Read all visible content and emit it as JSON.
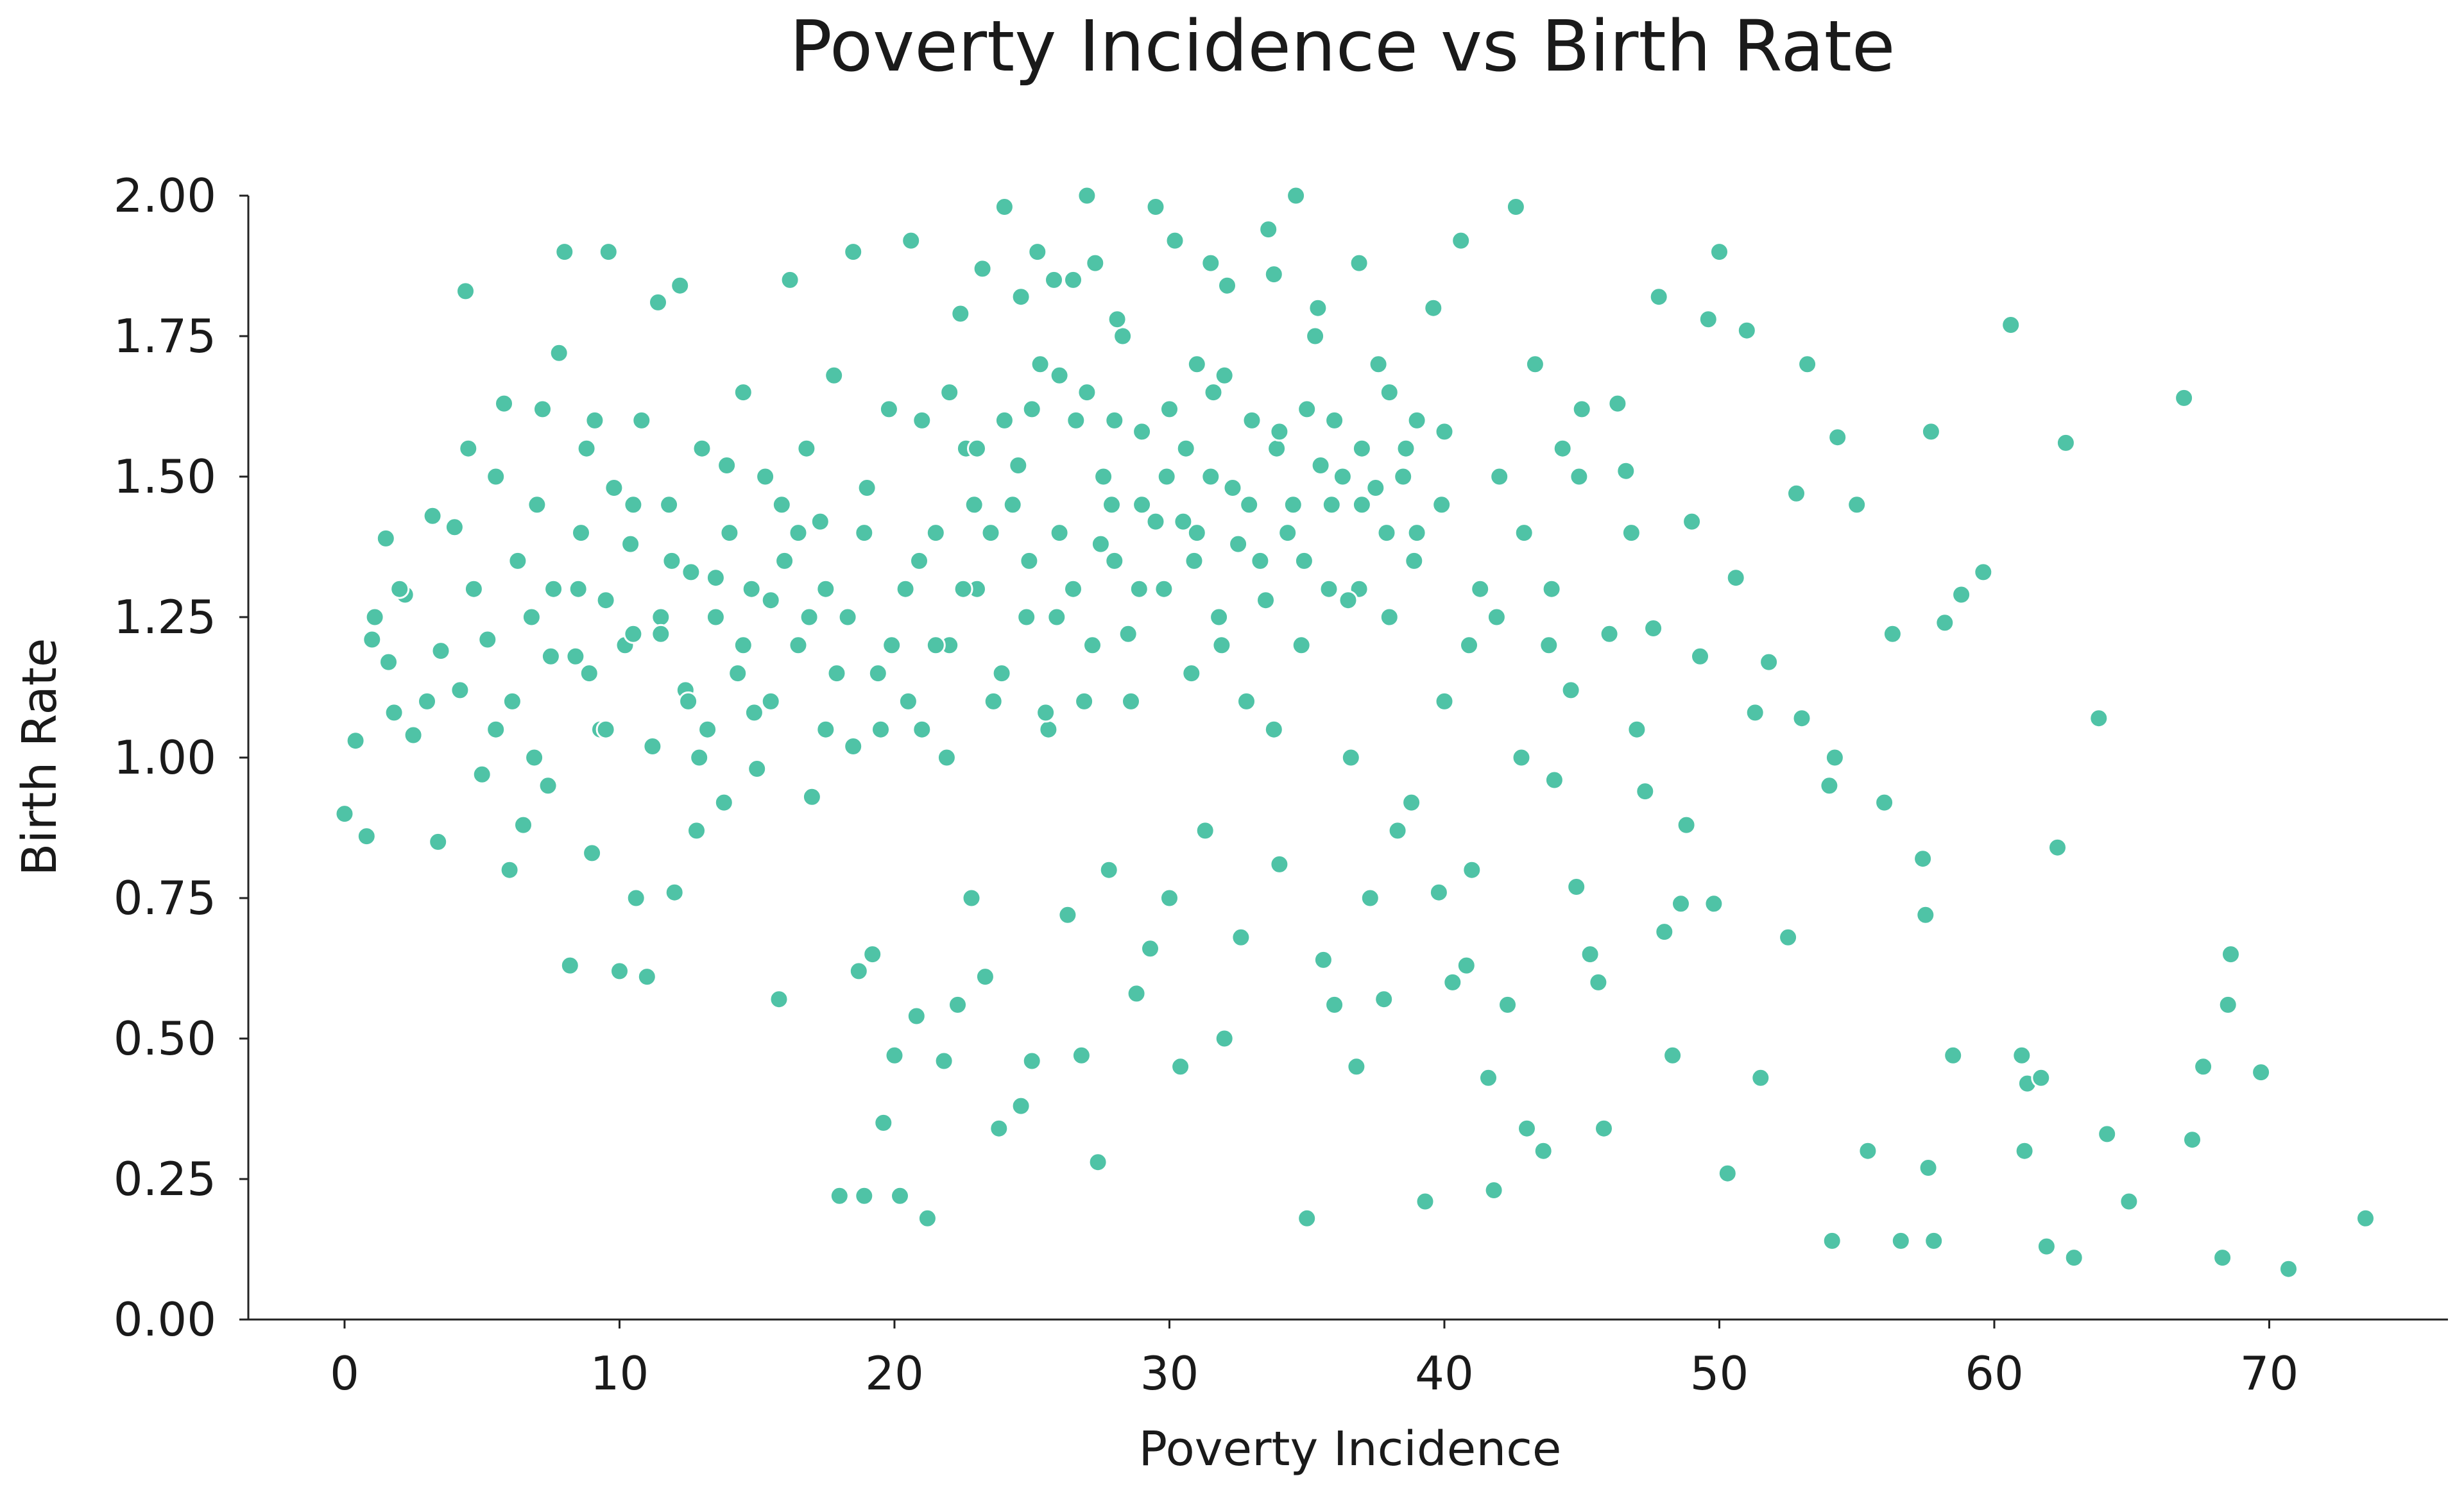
{
  "chart_data": {
    "type": "scatter",
    "title": "Poverty Incidence vs Birth Rate",
    "xlabel": "Poverty Incidence",
    "ylabel": "Birth Rate",
    "xlim": [
      -3.5,
      76.5
    ],
    "ylim": [
      0,
      2
    ],
    "xticks": [
      0,
      10,
      20,
      30,
      40,
      50,
      60,
      70
    ],
    "xtick_labels": [
      "0",
      "10",
      "20",
      "30",
      "40",
      "50",
      "60",
      "70"
    ],
    "yticks": [
      0,
      0.25,
      0.5,
      0.75,
      1.0,
      1.25,
      1.5,
      1.75,
      2.0
    ],
    "ytick_labels": [
      "0.00",
      "0.25",
      "0.50",
      "0.75",
      "1.00",
      "1.25",
      "1.50",
      "1.75",
      "2.00"
    ],
    "grid": false,
    "legend": "none",
    "color": "#4fc3a6",
    "points": [
      [
        0.0,
        0.9
      ],
      [
        0.4,
        1.03
      ],
      [
        0.8,
        0.86
      ],
      [
        1.0,
        1.21
      ],
      [
        1.1,
        1.25
      ],
      [
        1.5,
        1.39
      ],
      [
        1.6,
        1.17
      ],
      [
        1.8,
        1.08
      ],
      [
        2.2,
        1.29
      ],
      [
        2.5,
        1.04
      ],
      [
        3.2,
        1.43
      ],
      [
        3.4,
        0.85
      ],
      [
        3.5,
        1.19
      ],
      [
        4.0,
        1.41
      ],
      [
        4.2,
        1.12
      ],
      [
        4.4,
        1.83
      ],
      [
        4.7,
        1.3
      ],
      [
        5.0,
        0.97
      ],
      [
        5.2,
        1.21
      ],
      [
        5.5,
        1.5
      ],
      [
        5.8,
        1.63
      ],
      [
        6.0,
        0.8
      ],
      [
        6.1,
        1.1
      ],
      [
        6.3,
        1.35
      ],
      [
        6.5,
        0.88
      ],
      [
        6.8,
        1.25
      ],
      [
        7.0,
        1.45
      ],
      [
        7.2,
        1.62
      ],
      [
        7.4,
        0.95
      ],
      [
        7.6,
        1.3
      ],
      [
        7.8,
        1.72
      ],
      [
        8.0,
        1.9
      ],
      [
        8.2,
        0.63
      ],
      [
        8.4,
        1.18
      ],
      [
        8.6,
        1.4
      ],
      [
        8.8,
        1.55
      ],
      [
        9.0,
        0.83
      ],
      [
        9.3,
        1.05
      ],
      [
        9.5,
        1.28
      ],
      [
        9.6,
        1.9
      ],
      [
        9.8,
        1.48
      ],
      [
        10.0,
        0.62
      ],
      [
        10.2,
        1.2
      ],
      [
        10.4,
        1.38
      ],
      [
        10.6,
        0.75
      ],
      [
        10.8,
        1.6
      ],
      [
        11.0,
        0.61
      ],
      [
        11.2,
        1.02
      ],
      [
        11.4,
        1.81
      ],
      [
        11.5,
        1.25
      ],
      [
        11.8,
        1.45
      ],
      [
        12.0,
        0.76
      ],
      [
        12.2,
        1.84
      ],
      [
        12.4,
        1.12
      ],
      [
        12.6,
        1.33
      ],
      [
        12.8,
        0.87
      ],
      [
        13.0,
        1.55
      ],
      [
        13.2,
        1.05
      ],
      [
        13.5,
        1.25
      ],
      [
        13.8,
        0.92
      ],
      [
        14.0,
        1.4
      ],
      [
        14.3,
        1.15
      ],
      [
        14.5,
        1.65
      ],
      [
        14.8,
        1.3
      ],
      [
        15.0,
        0.98
      ],
      [
        15.3,
        1.5
      ],
      [
        15.5,
        1.1
      ],
      [
        15.8,
        0.57
      ],
      [
        16.0,
        1.35
      ],
      [
        16.2,
        1.85
      ],
      [
        16.5,
        1.2
      ],
      [
        16.8,
        1.55
      ],
      [
        17.0,
        0.93
      ],
      [
        17.3,
        1.42
      ],
      [
        17.5,
        1.05
      ],
      [
        17.8,
        1.68
      ],
      [
        18.0,
        0.22
      ],
      [
        18.3,
        1.25
      ],
      [
        18.5,
        1.9
      ],
      [
        18.7,
        0.62
      ],
      [
        18.9,
        0.22
      ],
      [
        19.0,
        1.48
      ],
      [
        19.2,
        0.65
      ],
      [
        19.4,
        1.15
      ],
      [
        19.6,
        0.35
      ],
      [
        19.8,
        1.62
      ],
      [
        20.0,
        0.47
      ],
      [
        20.2,
        0.22
      ],
      [
        20.4,
        1.3
      ],
      [
        20.6,
        1.92
      ],
      [
        20.8,
        0.54
      ],
      [
        21.0,
        1.05
      ],
      [
        21.2,
        0.18
      ],
      [
        21.5,
        1.4
      ],
      [
        21.8,
        0.46
      ],
      [
        22.0,
        1.2
      ],
      [
        22.3,
        0.56
      ],
      [
        22.6,
        1.55
      ],
      [
        22.8,
        0.75
      ],
      [
        23.0,
        1.3
      ],
      [
        23.3,
        0.61
      ],
      [
        23.6,
        1.1
      ],
      [
        23.8,
        0.34
      ],
      [
        24.0,
        1.98
      ],
      [
        24.3,
        1.45
      ],
      [
        24.6,
        0.38
      ],
      [
        24.8,
        1.25
      ],
      [
        25.0,
        0.46
      ],
      [
        25.3,
        1.7
      ],
      [
        25.6,
        1.05
      ],
      [
        25.8,
        1.85
      ],
      [
        26.0,
        1.4
      ],
      [
        26.3,
        0.72
      ],
      [
        26.6,
        1.6
      ],
      [
        26.8,
        0.47
      ],
      [
        27.0,
        2.0
      ],
      [
        27.2,
        1.2
      ],
      [
        27.4,
        0.28
      ],
      [
        27.6,
        1.5
      ],
      [
        27.8,
        0.8
      ],
      [
        28.0,
        1.35
      ],
      [
        28.3,
        1.75
      ],
      [
        28.6,
        1.1
      ],
      [
        28.8,
        0.58
      ],
      [
        29.0,
        1.45
      ],
      [
        29.3,
        0.66
      ],
      [
        29.5,
        1.98
      ],
      [
        29.8,
        1.3
      ],
      [
        30.0,
        0.75
      ],
      [
        30.2,
        1.92
      ],
      [
        30.4,
        0.45
      ],
      [
        30.6,
        1.55
      ],
      [
        30.8,
        1.15
      ],
      [
        31.0,
        1.4
      ],
      [
        31.3,
        0.87
      ],
      [
        31.6,
        1.65
      ],
      [
        31.8,
        1.25
      ],
      [
        32.0,
        0.5
      ],
      [
        32.3,
        1.48
      ],
      [
        32.6,
        0.68
      ],
      [
        32.8,
        1.1
      ],
      [
        33.0,
        1.6
      ],
      [
        33.3,
        1.35
      ],
      [
        33.6,
        1.94
      ],
      [
        33.8,
        1.05
      ],
      [
        34.0,
        0.81
      ],
      [
        34.3,
        1.4
      ],
      [
        34.6,
        2.0
      ],
      [
        34.8,
        1.2
      ],
      [
        35.0,
        0.18
      ],
      [
        35.3,
        1.75
      ],
      [
        35.6,
        0.64
      ],
      [
        35.8,
        1.3
      ],
      [
        36.0,
        0.56
      ],
      [
        36.3,
        1.5
      ],
      [
        36.6,
        1.0
      ],
      [
        36.8,
        0.45
      ],
      [
        37.0,
        1.45
      ],
      [
        37.3,
        0.75
      ],
      [
        37.6,
        1.7
      ],
      [
        37.8,
        0.57
      ],
      [
        38.0,
        1.25
      ],
      [
        38.3,
        0.87
      ],
      [
        38.6,
        1.55
      ],
      [
        38.8,
        0.92
      ],
      [
        39.0,
        1.4
      ],
      [
        39.3,
        0.21
      ],
      [
        39.6,
        1.8
      ],
      [
        39.8,
        0.76
      ],
      [
        40.0,
        1.1
      ],
      [
        40.3,
        0.6
      ],
      [
        40.6,
        1.92
      ],
      [
        40.8,
        0.63
      ],
      [
        41.0,
        0.8
      ],
      [
        41.3,
        1.3
      ],
      [
        41.6,
        0.43
      ],
      [
        41.8,
        0.23
      ],
      [
        42.0,
        1.5
      ],
      [
        42.3,
        0.56
      ],
      [
        42.6,
        1.98
      ],
      [
        42.8,
        1.0
      ],
      [
        43.0,
        0.34
      ],
      [
        43.3,
        1.7
      ],
      [
        43.6,
        0.3
      ],
      [
        43.8,
        1.2
      ],
      [
        44.0,
        0.96
      ],
      [
        44.3,
        1.55
      ],
      [
        44.6,
        1.12
      ],
      [
        44.8,
        0.77
      ],
      [
        45.0,
        1.62
      ],
      [
        45.3,
        0.65
      ],
      [
        45.6,
        0.6
      ],
      [
        45.8,
        0.34
      ],
      [
        46.0,
        1.22
      ],
      [
        46.3,
        1.63
      ],
      [
        46.6,
        1.51
      ],
      [
        46.8,
        1.4
      ],
      [
        47.0,
        1.05
      ],
      [
        47.3,
        0.94
      ],
      [
        47.6,
        1.23
      ],
      [
        47.8,
        1.82
      ],
      [
        48.0,
        0.69
      ],
      [
        48.3,
        0.47
      ],
      [
        48.6,
        0.74
      ],
      [
        48.8,
        0.88
      ],
      [
        49.0,
        1.42
      ],
      [
        49.3,
        1.18
      ],
      [
        49.6,
        1.78
      ],
      [
        49.8,
        0.74
      ],
      [
        50.0,
        1.9
      ],
      [
        50.3,
        0.26
      ],
      [
        50.6,
        1.32
      ],
      [
        51.0,
        1.76
      ],
      [
        51.3,
        1.08
      ],
      [
        51.5,
        0.43
      ],
      [
        51.8,
        1.17
      ],
      [
        52.5,
        0.68
      ],
      [
        52.8,
        1.47
      ],
      [
        53.0,
        1.07
      ],
      [
        53.2,
        1.7
      ],
      [
        54.0,
        0.95
      ],
      [
        54.1,
        0.14
      ],
      [
        54.2,
        1.0
      ],
      [
        54.3,
        1.57
      ],
      [
        55.0,
        1.45
      ],
      [
        55.4,
        0.3
      ],
      [
        56.0,
        0.92
      ],
      [
        56.3,
        1.22
      ],
      [
        56.6,
        0.14
      ],
      [
        57.4,
        0.82
      ],
      [
        57.5,
        0.72
      ],
      [
        57.6,
        0.27
      ],
      [
        57.7,
        1.58
      ],
      [
        57.8,
        0.14
      ],
      [
        58.2,
        1.24
      ],
      [
        58.5,
        0.47
      ],
      [
        58.8,
        1.29
      ],
      [
        59.6,
        1.33
      ],
      [
        60.6,
        1.77
      ],
      [
        61.0,
        0.47
      ],
      [
        61.1,
        0.3
      ],
      [
        61.2,
        0.42
      ],
      [
        61.7,
        0.43
      ],
      [
        61.9,
        0.13
      ],
      [
        62.3,
        0.84
      ],
      [
        62.6,
        1.56
      ],
      [
        62.9,
        0.11
      ],
      [
        63.8,
        1.07
      ],
      [
        64.1,
        0.33
      ],
      [
        64.9,
        0.21
      ],
      [
        66.9,
        1.64
      ],
      [
        67.2,
        0.32
      ],
      [
        67.6,
        0.45
      ],
      [
        68.3,
        0.11
      ],
      [
        68.5,
        0.56
      ],
      [
        68.6,
        0.65
      ],
      [
        69.7,
        0.44
      ],
      [
        70.7,
        0.09
      ],
      [
        73.5,
        0.18
      ],
      [
        2.0,
        1.3
      ],
      [
        3.0,
        1.1
      ],
      [
        4.5,
        1.55
      ],
      [
        6.9,
        1.0
      ],
      [
        8.9,
        1.15
      ],
      [
        9.1,
        1.6
      ],
      [
        10.5,
        1.45
      ],
      [
        11.9,
        1.35
      ],
      [
        12.9,
        1.0
      ],
      [
        13.9,
        1.52
      ],
      [
        14.9,
        1.08
      ],
      [
        15.9,
        1.45
      ],
      [
        16.9,
        1.25
      ],
      [
        17.9,
        1.15
      ],
      [
        18.9,
        1.4
      ],
      [
        19.9,
        1.2
      ],
      [
        20.9,
        1.35
      ],
      [
        21.9,
        1.0
      ],
      [
        22.9,
        1.45
      ],
      [
        23.9,
        1.15
      ],
      [
        24.9,
        1.35
      ],
      [
        25.9,
        1.25
      ],
      [
        26.9,
        1.1
      ],
      [
        27.9,
        1.45
      ],
      [
        28.9,
        1.3
      ],
      [
        29.9,
        1.5
      ],
      [
        30.9,
        1.35
      ],
      [
        31.9,
        1.2
      ],
      [
        32.9,
        1.45
      ],
      [
        33.9,
        1.55
      ],
      [
        34.9,
        1.35
      ],
      [
        35.9,
        1.45
      ],
      [
        36.9,
        1.3
      ],
      [
        37.9,
        1.4
      ],
      [
        38.9,
        1.35
      ],
      [
        39.9,
        1.45
      ],
      [
        40.9,
        1.2
      ],
      [
        41.9,
        1.25
      ],
      [
        42.9,
        1.4
      ],
      [
        43.9,
        1.3
      ],
      [
        44.9,
        1.5
      ],
      [
        5.5,
        1.05
      ],
      [
        7.5,
        1.18
      ],
      [
        9.5,
        1.05
      ],
      [
        11.5,
        1.22
      ],
      [
        13.5,
        1.32
      ],
      [
        15.5,
        1.28
      ],
      [
        17.5,
        1.3
      ],
      [
        19.5,
        1.05
      ],
      [
        21.5,
        1.2
      ],
      [
        23.5,
        1.4
      ],
      [
        25.5,
        1.08
      ],
      [
        27.5,
        1.38
      ],
      [
        29.5,
        1.42
      ],
      [
        31.5,
        1.5
      ],
      [
        33.5,
        1.28
      ],
      [
        35.5,
        1.52
      ],
      [
        37.5,
        1.48
      ],
      [
        8.5,
        1.3
      ],
      [
        10.5,
        1.22
      ],
      [
        12.5,
        1.1
      ],
      [
        14.5,
        1.2
      ],
      [
        16.5,
        1.4
      ],
      [
        18.5,
        1.02
      ],
      [
        20.5,
        1.1
      ],
      [
        22.5,
        1.3
      ],
      [
        24.5,
        1.52
      ],
      [
        26.5,
        1.3
      ],
      [
        28.5,
        1.22
      ],
      [
        30.5,
        1.42
      ],
      [
        32.5,
        1.38
      ],
      [
        34.5,
        1.45
      ],
      [
        36.5,
        1.28
      ],
      [
        38.5,
        1.5
      ],
      [
        26.5,
        1.85
      ],
      [
        27.3,
        1.88
      ],
      [
        28.1,
        1.78
      ],
      [
        23.2,
        1.87
      ],
      [
        22.4,
        1.79
      ],
      [
        24.6,
        1.82
      ],
      [
        25.2,
        1.9
      ],
      [
        31.5,
        1.88
      ],
      [
        32.1,
        1.84
      ],
      [
        33.8,
        1.86
      ],
      [
        36.9,
        1.88
      ],
      [
        35.4,
        1.8
      ],
      [
        21.0,
        1.6
      ],
      [
        22.0,
        1.65
      ],
      [
        23.0,
        1.55
      ],
      [
        24.0,
        1.6
      ],
      [
        25.0,
        1.62
      ],
      [
        26.0,
        1.68
      ],
      [
        27.0,
        1.65
      ],
      [
        28.0,
        1.6
      ],
      [
        29.0,
        1.58
      ],
      [
        30.0,
        1.62
      ],
      [
        31.0,
        1.7
      ],
      [
        32.0,
        1.68
      ],
      [
        33.0,
        1.6
      ],
      [
        34.0,
        1.58
      ],
      [
        35.0,
        1.62
      ],
      [
        36.0,
        1.6
      ],
      [
        37.0,
        1.55
      ],
      [
        38.0,
        1.65
      ],
      [
        39.0,
        1.6
      ],
      [
        40.0,
        1.58
      ]
    ]
  }
}
